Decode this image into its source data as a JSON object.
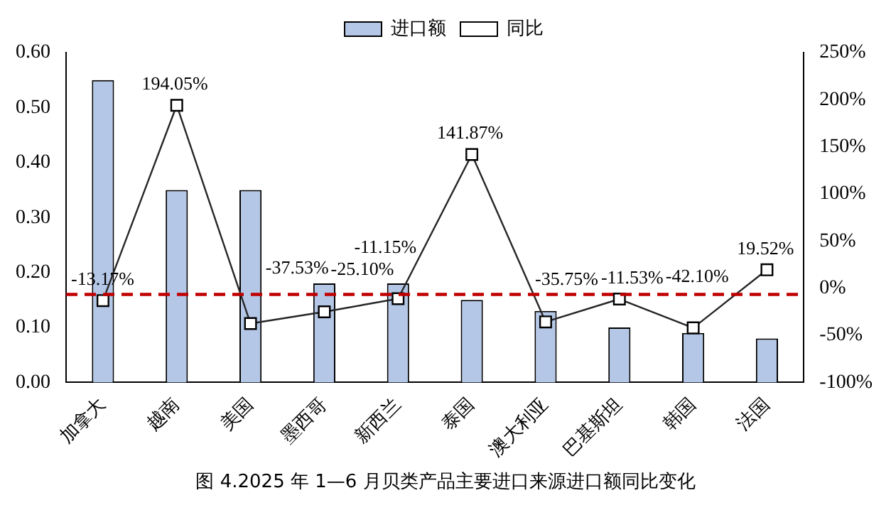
{
  "chart_data": {
    "type": "bar",
    "title": "图 4.2025 年 1—6 月贝类产品主要进口来源进口额同比变化",
    "categories": [
      "加拿大",
      "越南",
      "美国",
      "墨西哥",
      "新西兰",
      "泰国",
      "澳大利亚",
      "巴基斯坦",
      "韩国",
      "法国"
    ],
    "series": [
      {
        "name": "进口额",
        "color": "#b4c7e7",
        "values": [
          0.55,
          0.35,
          0.35,
          0.18,
          0.18,
          0.15,
          0.13,
          0.1,
          0.09,
          0.08
        ]
      },
      {
        "name": "同比",
        "type": "line",
        "axis": "y2",
        "color": "#262626",
        "marker": "square",
        "values": [
          -13.17,
          194.05,
          -37.53,
          -25.1,
          -11.15,
          141.87,
          -35.75,
          -11.53,
          -42.1,
          19.52
        ],
        "value_labels": [
          "-13.17%",
          "194.05%",
          "-37.53%",
          "-25.10%",
          "-11.15%",
          "141.87%",
          "-35.75%",
          "-11.53%",
          "-42.10%",
          "19.52%"
        ]
      }
    ],
    "ylim": [
      0,
      0.6
    ],
    "yticks": [
      {
        "value": 0,
        "label": "0.00"
      },
      {
        "value": 0.1,
        "label": "0.10"
      },
      {
        "value": 0.2,
        "label": "0.20"
      },
      {
        "value": 0.3,
        "label": "0.30"
      },
      {
        "value": 0.4,
        "label": "0.40"
      },
      {
        "value": 0.5,
        "label": "0.50"
      },
      {
        "value": 0.6,
        "label": "0.60"
      }
    ],
    "y2lim": [
      -100,
      250
    ],
    "y2ticks": [
      {
        "value": -100,
        "label": "-100%"
      },
      {
        "value": -50,
        "label": "-50%"
      },
      {
        "value": 0,
        "label": "0%"
      },
      {
        "value": 50,
        "label": "50%"
      },
      {
        "value": 100,
        "label": "100%"
      },
      {
        "value": 150,
        "label": "150%"
      },
      {
        "value": 200,
        "label": "200%"
      },
      {
        "value": 250,
        "label": "250%"
      }
    ],
    "ref_lines": [
      {
        "axis": "y",
        "value": 0.16,
        "color": "#c00000",
        "line_style": "dashed"
      }
    ],
    "legend": "top",
    "grid": false
  }
}
